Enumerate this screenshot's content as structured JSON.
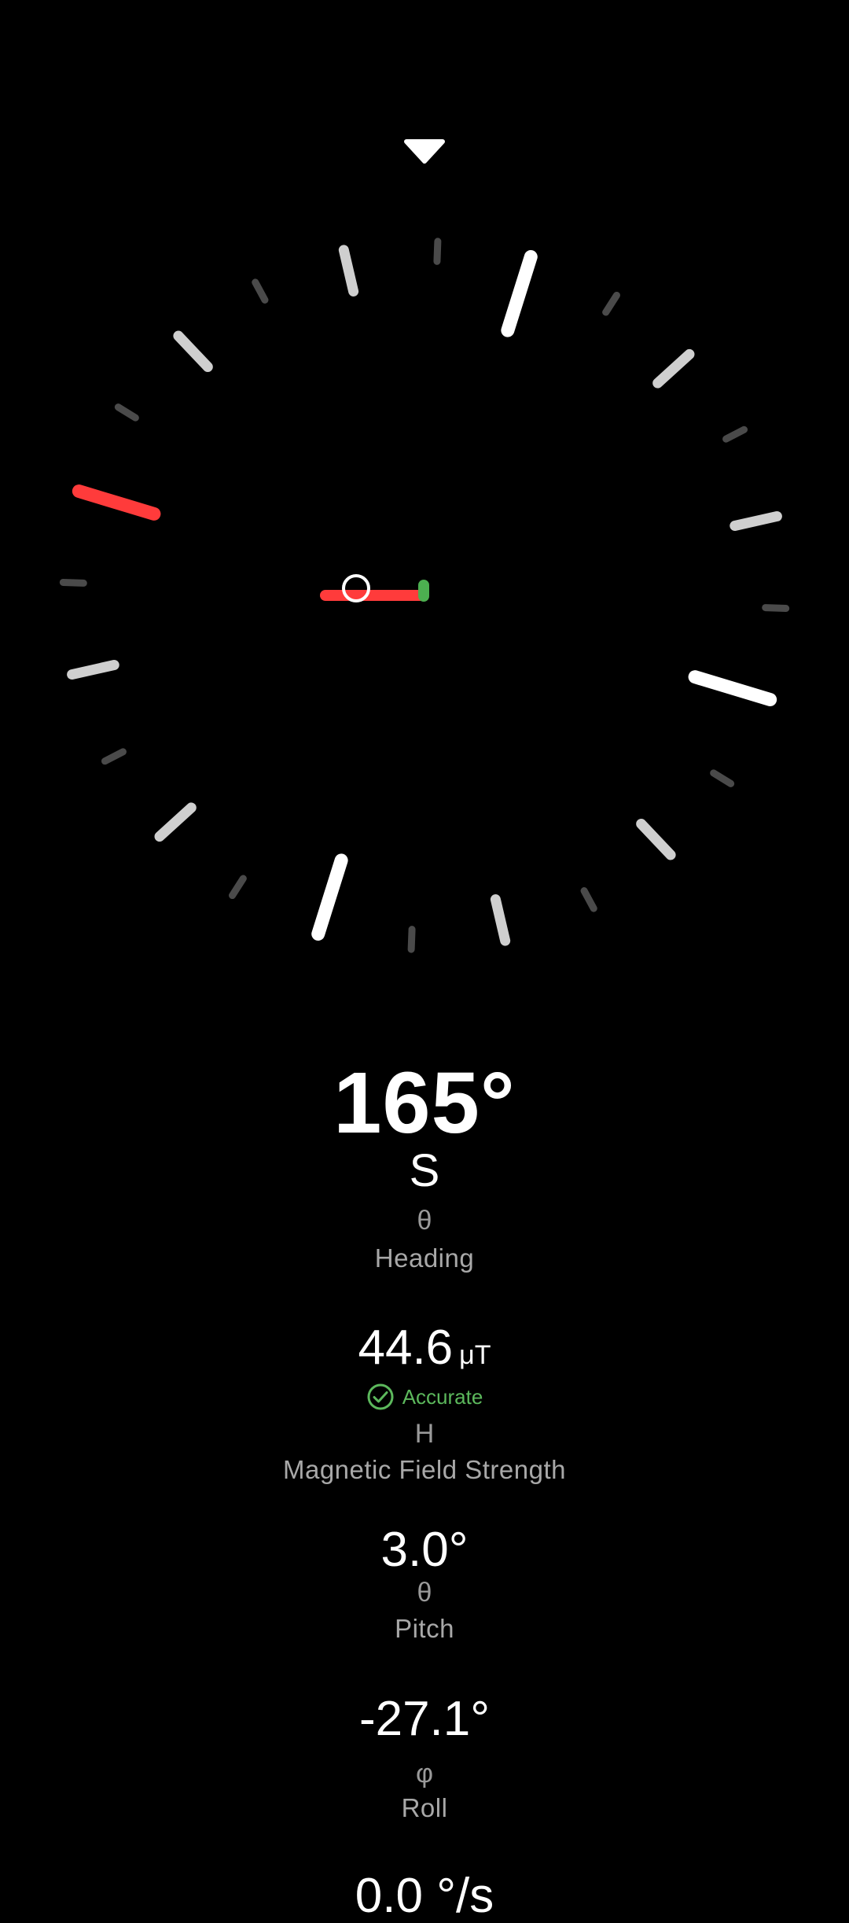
{
  "compass": {
    "heading_deg": 165,
    "pointer_color": "#ffffff",
    "north_color": "#ff3b3b",
    "level_bar_color": "#ff3b3b",
    "level_dot_color": "#4caf50"
  },
  "heading": {
    "value": "165°",
    "direction": "S",
    "symbol": "θ",
    "label": "Heading"
  },
  "magnetic": {
    "value": "44.6",
    "unit": "μT",
    "accuracy": "Accurate",
    "accuracy_color": "#5cb85c",
    "symbol": "H",
    "label": "Magnetic Field Strength"
  },
  "pitch": {
    "value": "3.0°",
    "symbol": "θ",
    "label": "Pitch"
  },
  "roll": {
    "value": "-27.1°",
    "symbol": "φ",
    "label": "Roll"
  },
  "next": {
    "value": "0.0 °/s"
  }
}
